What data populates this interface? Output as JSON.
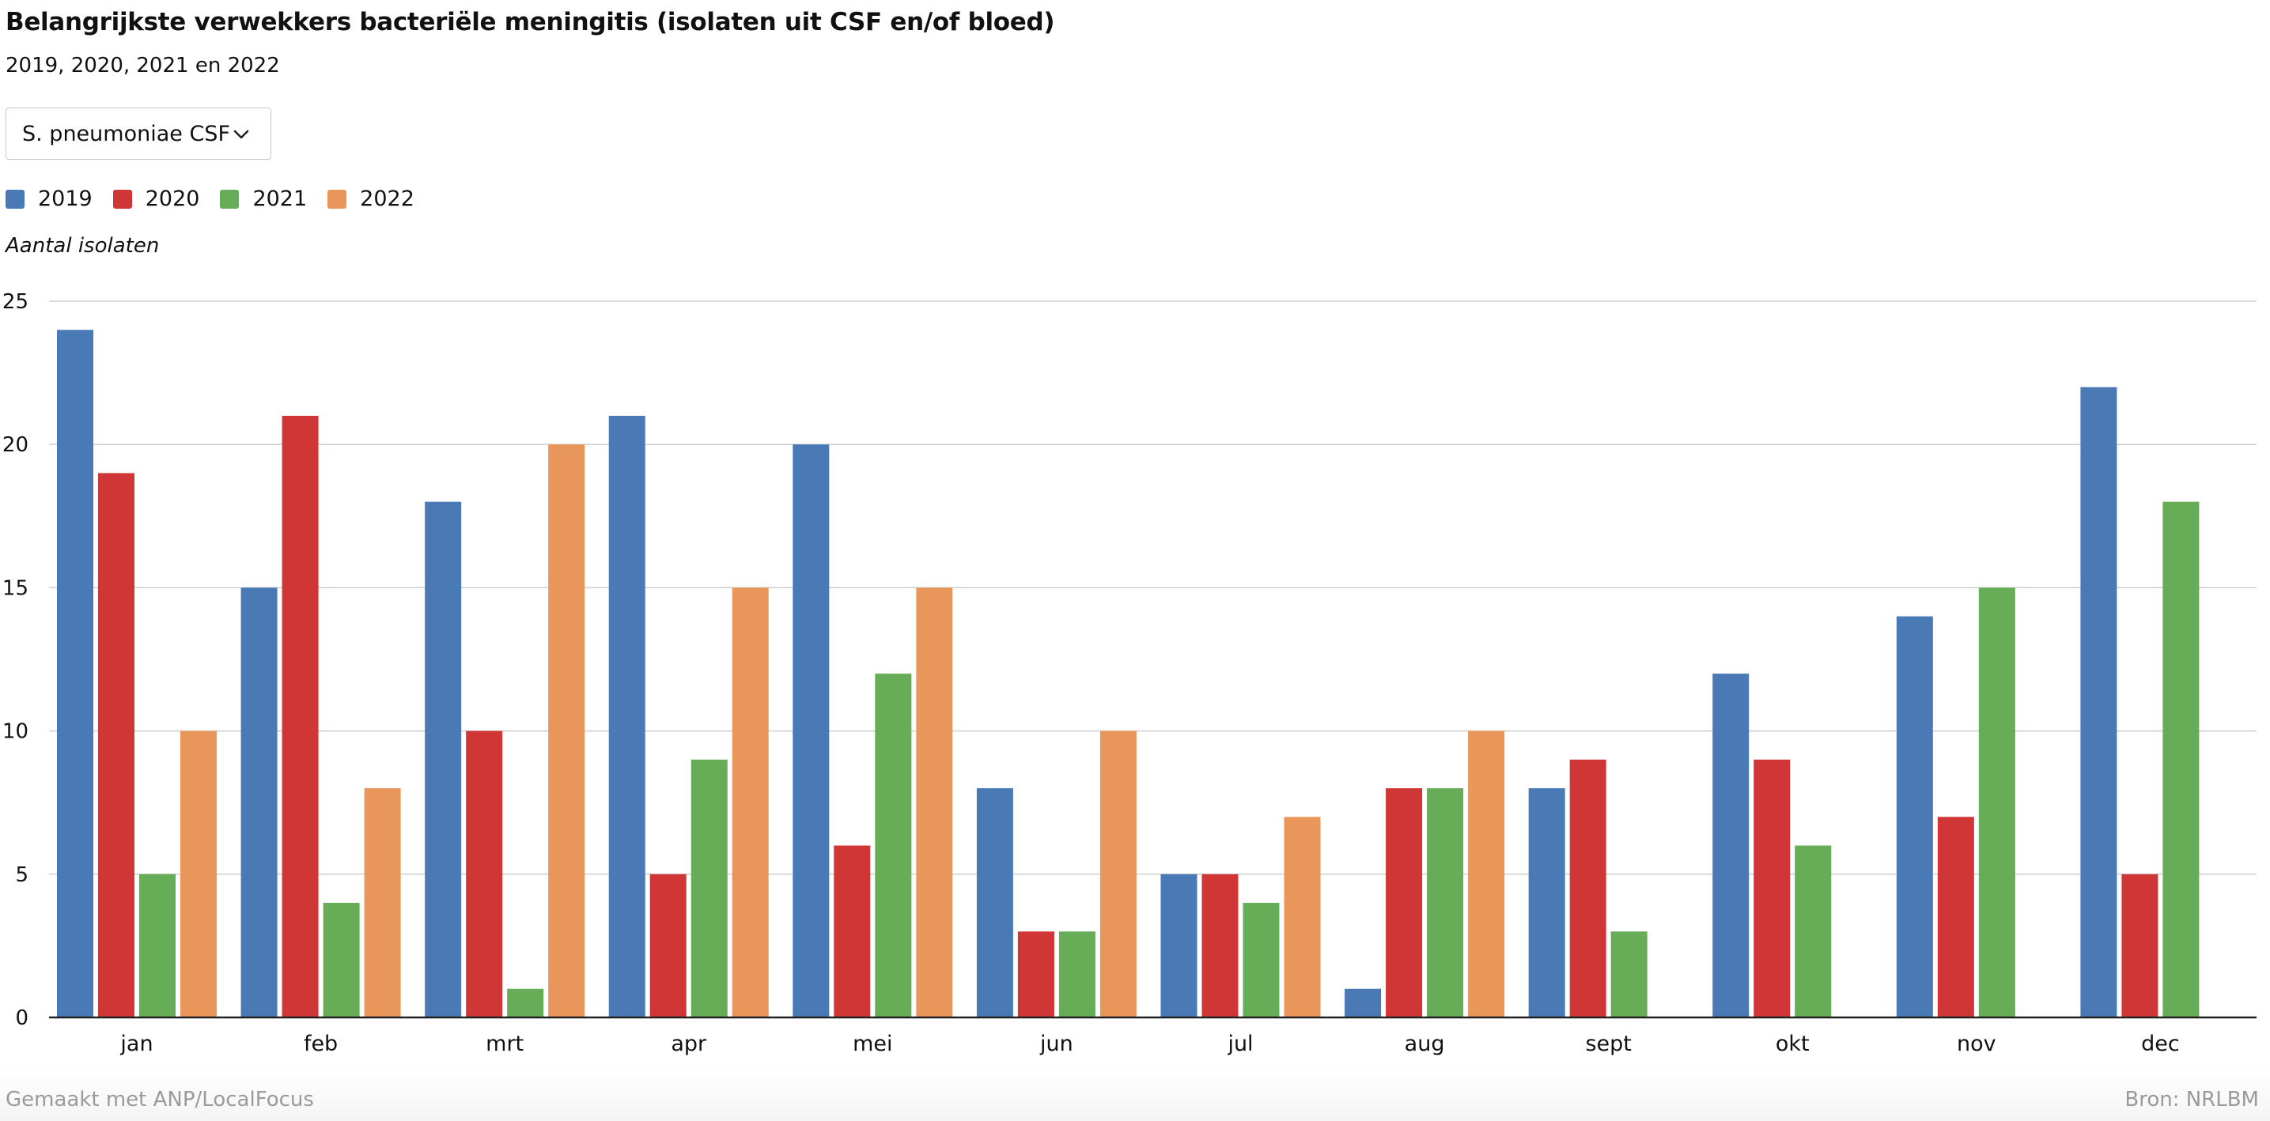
{
  "header": {
    "title": "Belangrijkste verwekkers bacteriële meningitis (isolaten uit CSF en/of bloed)",
    "subtitle": "2019, 2020, 2021 en 2022"
  },
  "selector": {
    "selected": "S. pneumoniae CSF",
    "icon": "chevron-down-icon"
  },
  "footer": {
    "made_with": "Gemaakt met ANP/LocalFocus",
    "source": "Bron:  NRLBM"
  },
  "chart_data": {
    "type": "bar",
    "title": "Belangrijkste verwekkers bacteriële meningitis (isolaten uit CSF en/of bloed)",
    "subtitle": "2019, 2020, 2021 en 2022",
    "ylabel": "Aantal isolaten",
    "xlabel": "",
    "ylim": [
      0,
      25
    ],
    "yticks": [
      0,
      5,
      10,
      15,
      20,
      25
    ],
    "grid": true,
    "legend_position": "top-left",
    "categories": [
      "jan",
      "feb",
      "mrt",
      "apr",
      "mei",
      "jun",
      "jul",
      "aug",
      "sept",
      "okt",
      "nov",
      "dec"
    ],
    "series": [
      {
        "name": "2019",
        "color": "#4a7ab5",
        "values": [
          24,
          15,
          18,
          21,
          20,
          8,
          5,
          1,
          8,
          12,
          14,
          22
        ]
      },
      {
        "name": "2020",
        "color": "#d13636",
        "values": [
          19,
          21,
          10,
          5,
          6,
          3,
          5,
          8,
          9,
          9,
          7,
          5
        ]
      },
      {
        "name": "2021",
        "color": "#67ac56",
        "values": [
          5,
          4,
          1,
          9,
          12,
          3,
          4,
          8,
          3,
          6,
          15,
          18
        ]
      },
      {
        "name": "2022",
        "color": "#e9965a",
        "values": [
          10,
          8,
          20,
          15,
          15,
          10,
          7,
          10,
          null,
          null,
          null,
          null
        ]
      }
    ]
  }
}
